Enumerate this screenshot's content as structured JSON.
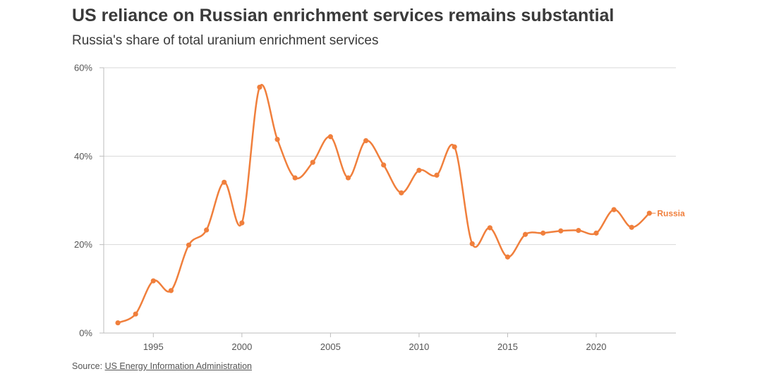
{
  "title": "US reliance on Russian enrichment services remains substantial",
  "subtitle": "Russia's share of total uranium enrichment services",
  "source": {
    "prefix": "Source: ",
    "link_text": "US Energy Information Administration"
  },
  "colors": {
    "series": "#f07f3c",
    "grid": "#d9d9d9",
    "axis": "#bdbdbd",
    "text": "#555555"
  },
  "chart_data": {
    "type": "line",
    "title": "Russia's share of total uranium enrichment services",
    "xlabel": "",
    "ylabel": "",
    "xlim": [
      1992.2,
      2024.5
    ],
    "ylim": [
      0,
      60
    ],
    "y_ticks": [
      0,
      20,
      40,
      60
    ],
    "y_tick_labels": [
      "0%",
      "20%",
      "40%",
      "60%"
    ],
    "x_ticks": [
      1995,
      2000,
      2005,
      2010,
      2015,
      2020
    ],
    "x_tick_labels": [
      "1995",
      "2000",
      "2005",
      "2010",
      "2015",
      "2020"
    ],
    "grid": "horizontal",
    "series": [
      {
        "name": "Russia",
        "x": [
          1993,
          1994,
          1995,
          1996,
          1997,
          1998,
          1999,
          2000,
          2001,
          2002,
          2003,
          2004,
          2005,
          2006,
          2007,
          2008,
          2009,
          2010,
          2011,
          2012,
          2013,
          2014,
          2015,
          2016,
          2017,
          2018,
          2019,
          2020,
          2021,
          2022,
          2023
        ],
        "values": [
          2.3,
          4.3,
          11.8,
          9.6,
          19.9,
          23.3,
          34.1,
          24.9,
          55.6,
          43.8,
          35.1,
          38.6,
          44.4,
          35.1,
          43.5,
          38.0,
          31.7,
          36.8,
          35.7,
          42.1,
          20.2,
          23.8,
          17.2,
          22.3,
          22.6,
          23.1,
          23.2,
          22.6,
          27.9,
          23.9,
          27.1
        ]
      }
    ]
  }
}
